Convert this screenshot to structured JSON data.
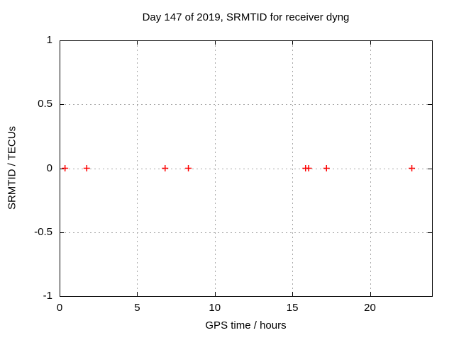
{
  "chart_data": {
    "type": "scatter",
    "title": "Day 147 of 2019, SRMTID for receiver dyng",
    "xlabel": "GPS time / hours",
    "ylabel": "SRMTID / TECUs",
    "xlim": [
      0,
      24
    ],
    "ylim": [
      -1,
      1
    ],
    "xticks": [
      0,
      5,
      10,
      15,
      20
    ],
    "xtick_labels": [
      "0",
      "5",
      "10",
      "15",
      "20"
    ],
    "yticks": [
      -1,
      -0.5,
      0,
      0.5,
      1
    ],
    "ytick_labels": [
      "-1",
      "-0.5",
      "0",
      "0.5",
      "1"
    ],
    "grid": true,
    "legend": "none",
    "series": [
      {
        "name": "SRMTID",
        "marker": "plus",
        "marker_color": "#ff0000",
        "x": [
          0.35,
          1.75,
          6.8,
          8.3,
          15.85,
          16.05,
          17.2,
          22.7
        ],
        "y": [
          0,
          0,
          0,
          0,
          0,
          0,
          0,
          0
        ]
      }
    ],
    "colors": {
      "frame": "#000000",
      "grid": "#a8a8a8",
      "background": "#ffffff",
      "text": "#000000"
    }
  }
}
